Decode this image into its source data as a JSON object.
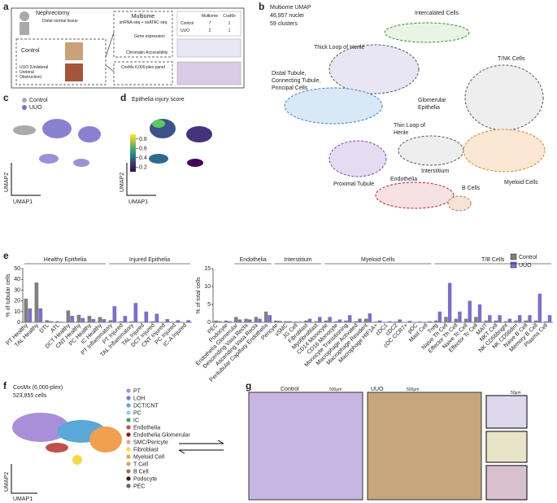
{
  "panel_labels": [
    "a",
    "b",
    "c",
    "d",
    "e",
    "f",
    "g"
  ],
  "a": {
    "nephrectomy": "Nephrectomy",
    "tissue": "Distal normal tissue",
    "control": "Control",
    "uuo": [
      "UUO (Unilateral",
      "Ureteral",
      "Obstruction)"
    ],
    "multiome": [
      "Multiome",
      "snRNA-seq + snATAC seq"
    ],
    "gene": "Gene expression",
    "chromatin": "Chromatin Accessibility",
    "cosmx": "CosMx 6,000-plex panel",
    "table": {
      "header": [
        "Multiome",
        "CosMx"
      ],
      "rows": [
        [
          "Control",
          "7",
          "1"
        ],
        [
          "UUO",
          "2",
          "1"
        ]
      ]
    }
  },
  "b": {
    "title": "Multiome UMAP",
    "nuclei": "46,957 nuclei",
    "clusters": "59 clusters",
    "labels": {
      "ic": "Intercalated Cells",
      "tloh": "Thick Loop of Henle",
      "dt": [
        "Distal Tubule,",
        "Connecting Tubule,",
        "Principal Cells"
      ],
      "tnk": "T/NK Cells",
      "glom": [
        "Glomerular",
        "Epithelia"
      ],
      "thin": [
        "Thin Loop of",
        "Henle"
      ],
      "pt": "Proximal Tubule",
      "inter": "Interstitium",
      "endo": "Endothelia",
      "b": "B Cells",
      "myeloid": "Myeloid Cells"
    }
  },
  "c": {
    "legend": [
      "Control",
      "UUO"
    ],
    "x": "UMAP1",
    "y": "UMAP2"
  },
  "d": {
    "title": "Epithelia injury score",
    "colorbar_lim": [
      0.1,
      0.9
    ],
    "colorbar_ticks": [
      0.2,
      0.4,
      0.6,
      0.8
    ],
    "x": "UMAP1",
    "y": "UMAP2"
  },
  "chart_data": [
    {
      "type": "bar",
      "ylabel": "% of tubular cells",
      "groups": [
        "Healthy Epithelia",
        "Injured Epithelia"
      ],
      "categories": [
        "PT Healthy",
        "TAL Healthy",
        "DTL",
        "ATL",
        "DCT Healthy",
        "CNT Healthy",
        "PC Healthy",
        "IC Healthy",
        "PT Inflammatory",
        "PT Injured",
        "TAL Inflammatory",
        "TAL Injured",
        "DCT Injured",
        "CNT Injured",
        "PC Injured",
        "IC-A Injured"
      ],
      "series": [
        {
          "name": "Control",
          "color": "#7f7f7f",
          "values": [
            22,
            37,
            2,
            1,
            11,
            7,
            6,
            5,
            2,
            1,
            1,
            0.5,
            1,
            0.5,
            0.5,
            0.3
          ]
        },
        {
          "name": "UUO",
          "color": "#7b6fc9",
          "values": [
            13,
            13,
            1,
            0.5,
            6,
            4,
            3,
            3,
            15,
            6,
            18,
            10,
            8,
            3,
            2,
            2
          ]
        }
      ],
      "ylim": [
        0,
        50
      ],
      "yticks": [
        0,
        10,
        20,
        30,
        40,
        50
      ]
    },
    {
      "type": "bar",
      "ylabel": "% of total cells",
      "groups": [
        "Endothelia",
        "Interstitium",
        "Myeloid Cells",
        "T/B Cells"
      ],
      "categories": [
        "PEC",
        "Podocyte",
        "Endothelia Glomerular",
        "Descending Vasa Recta",
        "Ascending Vasa Recta",
        "Peritubular Capillary Endothelia",
        "Pericyte",
        "vSMC",
        "JG Cell",
        "Fibroblast",
        "Myofibroblast",
        "CD14 Monocyte",
        "CD16 Monocyte",
        "Monocyte Transitioning",
        "Macrophage Activated",
        "Macrophage Resident",
        "Macrophage HIF1A+",
        "cDC1",
        "cDC2",
        "cDC CCR7+",
        "pDC",
        "Mast Cell",
        "Treg",
        "Naive Th Cell",
        "Effector Th Cell",
        "Naive Tc Cell",
        "Effector Tc Cell",
        "MAIT",
        "NKT Cell",
        "NK CD56bright",
        "NK CD56dim",
        "Naive B Cell",
        "Memory B Cell",
        "Plasma Cell"
      ],
      "series": [
        {
          "name": "Control",
          "color": "#7f7f7f",
          "values": [
            0.5,
            0.5,
            1.5,
            1,
            1.5,
            3,
            0.5,
            0.3,
            0.2,
            0.5,
            0.3,
            0.5,
            0.3,
            0.5,
            0.3,
            1,
            0.2,
            0.1,
            0.2,
            0.1,
            0.1,
            0.1,
            0.5,
            1.5,
            1,
            1,
            1.5,
            0.5,
            0.5,
            0.3,
            0.5,
            0.5,
            0.5,
            0.3
          ]
        },
        {
          "name": "UUO",
          "color": "#7b6fc9",
          "values": [
            0.3,
            0.3,
            0.8,
            0.8,
            1,
            2,
            0.4,
            0.3,
            0.2,
            1,
            1.5,
            1.5,
            0.8,
            2,
            1,
            2.5,
            0.5,
            0.3,
            0.8,
            0.4,
            0.2,
            0.3,
            3,
            11,
            3,
            6,
            5,
            2,
            2,
            1,
            2,
            2,
            8,
            2
          ]
        }
      ],
      "ylim": [
        0,
        15
      ],
      "yticks": [
        0,
        5,
        10,
        15
      ]
    }
  ],
  "f": {
    "title": "CosMx (6,000-plex)",
    "cells": "523,855 cells",
    "x": "UMAP1",
    "y": "UMAP2",
    "legend": [
      {
        "name": "PT",
        "color": "#a98fd8"
      },
      {
        "name": "LOH",
        "color": "#6f83c8"
      },
      {
        "name": "DCT/CNT",
        "color": "#5aa7d8"
      },
      {
        "name": "PC",
        "color": "#8fd0e8"
      },
      {
        "name": "IC",
        "color": "#4d9c6a"
      },
      {
        "name": "Endothelia",
        "color": "#c0504d"
      },
      {
        "name": "Endothelia Glomerular",
        "color": "#8b1a1a"
      },
      {
        "name": "SMC/Pericyte",
        "color": "#e8a0a0"
      },
      {
        "name": "Fibroblast",
        "color": "#f2d94a"
      },
      {
        "name": "Myeloid Cell",
        "color": "#f0a050"
      },
      {
        "name": "T Cell",
        "color": "#c8a878"
      },
      {
        "name": "B Cell",
        "color": "#a07050"
      },
      {
        "name": "Podocyte",
        "color": "#222222"
      },
      {
        "name": "PEC",
        "color": "#666666"
      }
    ]
  },
  "g": {
    "control": "Control",
    "uuo": "UUO",
    "scale": "500μm",
    "scale_zoom": "50μm"
  }
}
